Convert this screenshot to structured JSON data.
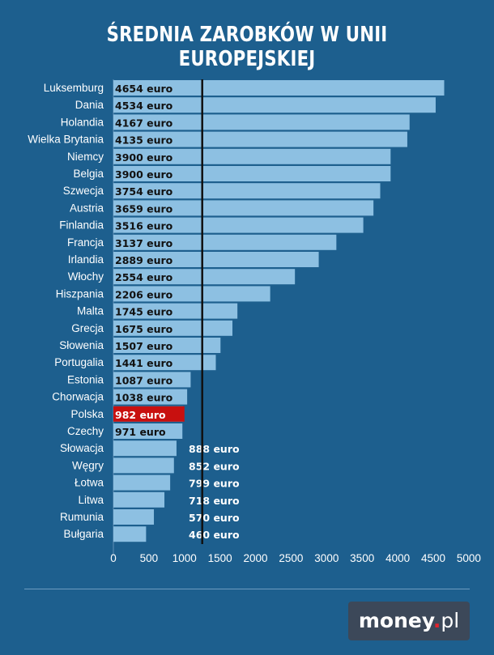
{
  "title": "ŚREDNIA ZAROBKÓW W UNII EUROPEJSKIEJ",
  "logo": {
    "brand": "money",
    "dot": ".",
    "tld": "pl"
  },
  "colors": {
    "background": "#1d5f8e",
    "bar": "#8dc0e2",
    "highlight": "#c8100f",
    "marker": "#111111"
  },
  "chart_data": {
    "type": "bar",
    "orientation": "horizontal",
    "title": "ŚREDNIA ZAROBKÓW W UNII EUROPEJSKIEJ",
    "xlim": [
      0,
      5000
    ],
    "xticks": [
      0,
      500,
      1000,
      1500,
      2000,
      2500,
      3000,
      3500,
      4000,
      4500,
      5000
    ],
    "reference_line": 1250,
    "grid": false,
    "categories": [
      "Luksemburg",
      "Dania",
      "Holandia",
      "Wielka Brytania",
      "Niemcy",
      "Belgia",
      "Szwecja",
      "Austria",
      "Finlandia",
      "Francja",
      "Irlandia",
      "Włochy",
      "Hiszpania",
      "Malta",
      "Grecja",
      "Słowenia",
      "Portugalia",
      "Estonia",
      "Chorwacja",
      "Polska",
      "Czechy",
      "Słowacja",
      "Węgry",
      "Łotwa",
      "Litwa",
      "Rumunia",
      "Bułgaria"
    ],
    "values": [
      4654,
      4534,
      4167,
      4135,
      3900,
      3900,
      3754,
      3659,
      3516,
      3137,
      2889,
      2554,
      2206,
      1745,
      1675,
      1507,
      1441,
      1087,
      1038,
      982,
      971,
      888,
      852,
      799,
      718,
      570,
      460
    ],
    "labels": [
      "4654 euro",
      "4534 euro",
      "4167 euro",
      "4135 euro",
      "3900 euro",
      "3900 euro",
      "3754 euro",
      "3659 euro",
      "3516 euro",
      "3137 euro",
      "2889 euro",
      "2554 euro",
      "2206 euro",
      "1745 euro",
      "1675 euro",
      "1507 euro",
      "1441 euro",
      "1087 euro",
      "1038 euro",
      "982 euro",
      "971 euro",
      "888 euro",
      "852 euro",
      "799 euro",
      "718 euro",
      "570 euro",
      "460 euro"
    ],
    "highlight": "Polska"
  }
}
